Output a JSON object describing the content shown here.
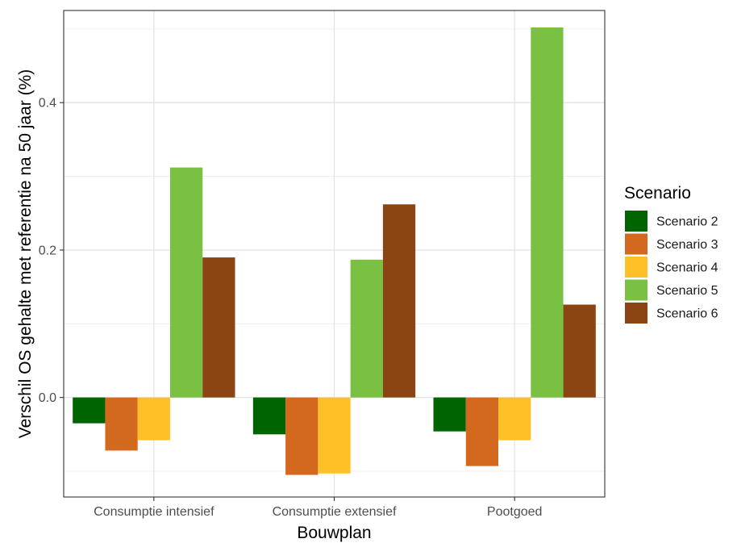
{
  "chart_data": {
    "type": "bar",
    "xlabel": "Bouwplan",
    "ylabel": "Verschil OS gehalte met referentie na 50 jaar (%)",
    "categories": [
      "Consumptie intensief",
      "Consumptie extensief",
      "Pootgoed"
    ],
    "ylim": [
      -0.135,
      0.525
    ],
    "yticks": [
      0.0,
      0.2,
      0.4
    ],
    "ytick_labels": [
      "0.0",
      "0.2",
      "0.4"
    ],
    "grid": true,
    "legend_title": "Scenario",
    "legend_position": "right",
    "series": [
      {
        "name": "Scenario 2",
        "color": "#006400",
        "values": [
          -0.035,
          -0.05,
          -0.046
        ]
      },
      {
        "name": "Scenario 3",
        "color": "#D2691E",
        "values": [
          -0.072,
          -0.105,
          -0.093
        ]
      },
      {
        "name": "Scenario 4",
        "color": "#FFBF27",
        "values": [
          -0.058,
          -0.103,
          -0.058
        ]
      },
      {
        "name": "Scenario 5",
        "color": "#7AC143",
        "values": [
          0.312,
          0.187,
          0.502
        ]
      },
      {
        "name": "Scenario 6",
        "color": "#8B4513",
        "values": [
          0.19,
          0.262,
          0.126
        ]
      }
    ]
  }
}
